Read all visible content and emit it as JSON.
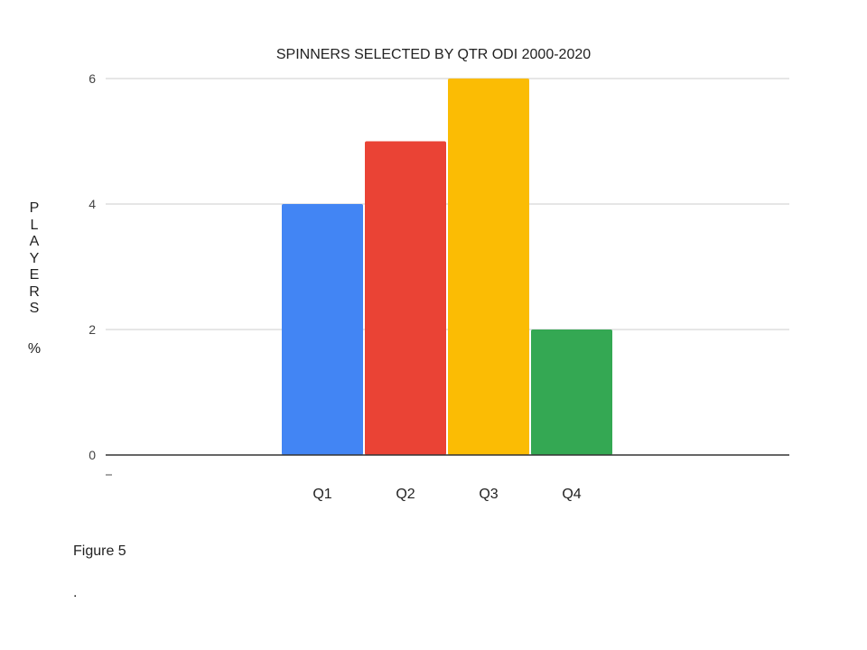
{
  "chart_data": {
    "type": "bar",
    "title": "SPINNERS SELECTED BY QTR ODI 2000-2020",
    "xlabel": "",
    "ylabel_letters": [
      "P",
      "L",
      "A",
      "Y",
      "E",
      "R",
      "S"
    ],
    "ylabel_unit": "%",
    "categories": [
      "Q1",
      "Q2",
      "Q3",
      "Q4"
    ],
    "values": [
      4,
      5,
      6,
      2
    ],
    "colors": [
      "#4285f4",
      "#ea4335",
      "#fbbc04",
      "#34a853"
    ],
    "ylim": [
      0,
      6
    ],
    "yticks": [
      0,
      2,
      4,
      6
    ],
    "grid": true,
    "legend": "none"
  },
  "caption": "Figure 5",
  "caption_dot": "."
}
